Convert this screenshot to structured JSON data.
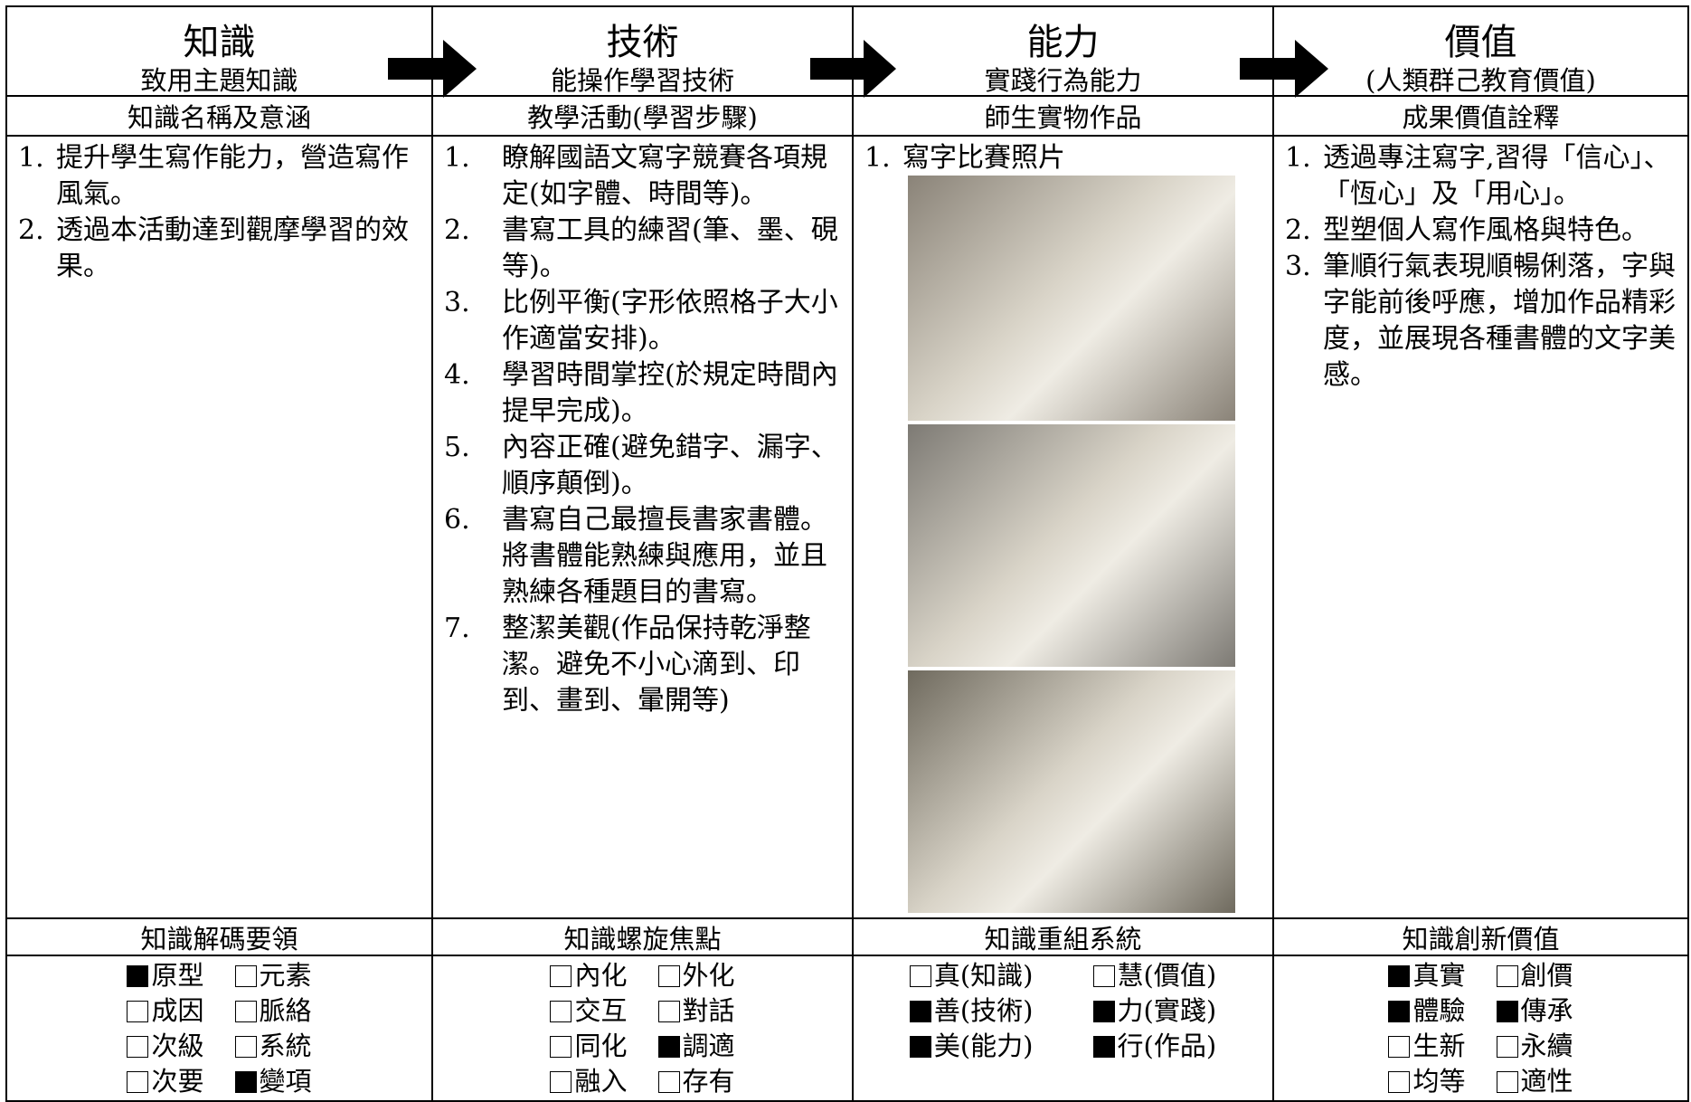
{
  "columns": [
    {
      "title": "知識",
      "subtitle": "致用主題知識",
      "section_heading": "知識名稱及意涵",
      "items": [
        {
          "num": "1.",
          "text": "提升學生寫作能力，營造寫作風氣。"
        },
        {
          "num": "2.",
          "text": "透過本活動達到觀摩學習的效果。"
        }
      ],
      "lower_heading": "知識解碼要領",
      "checkboxes": [
        {
          "label": "原型",
          "checked": true
        },
        {
          "label": "元素",
          "checked": false
        },
        {
          "label": "成因",
          "checked": false
        },
        {
          "label": "脈絡",
          "checked": false
        },
        {
          "label": "次級",
          "checked": false
        },
        {
          "label": "系統",
          "checked": false
        },
        {
          "label": "次要",
          "checked": false
        },
        {
          "label": "變項",
          "checked": true
        }
      ]
    },
    {
      "title": "技術",
      "subtitle": "能操作學習技術",
      "section_heading": "教學活動(學習步驟)",
      "items": [
        {
          "num": "1.",
          "text": "瞭解國語文寫字競賽各項規定(如字體、時間等)。"
        },
        {
          "num": "2.",
          "text": "書寫工具的練習(筆、墨、硯等)。"
        },
        {
          "num": "3.",
          "text": "比例平衡(字形依照格子大小作適當安排)。"
        },
        {
          "num": "4.",
          "text": "學習時間掌控(於規定時間內提早完成)。"
        },
        {
          "num": "5.",
          "text": "內容正確(避免錯字、漏字、順序顛倒)。"
        },
        {
          "num": "6.",
          "text": "書寫自己最擅長書家書體。將書體能熟練與應用，並且熟練各種題目的書寫。"
        },
        {
          "num": "7.",
          "text": "整潔美觀(作品保持乾淨整潔。避免不小心滴到、印到、畫到、暈開等)"
        }
      ],
      "lower_heading": "知識螺旋焦點",
      "checkboxes": [
        {
          "label": "內化",
          "checked": false
        },
        {
          "label": "外化",
          "checked": false
        },
        {
          "label": "交互",
          "checked": false
        },
        {
          "label": "對話",
          "checked": false
        },
        {
          "label": "同化",
          "checked": false
        },
        {
          "label": "調適",
          "checked": true
        },
        {
          "label": "融入",
          "checked": false
        },
        {
          "label": "存有",
          "checked": false
        }
      ]
    },
    {
      "title": "能力",
      "subtitle": "實踐行為能力",
      "section_heading": "師生實物作品",
      "items": [
        {
          "num": "1.",
          "text": "寫字比賽照片"
        }
      ],
      "lower_heading": "知識重組系統",
      "checkboxes": [
        {
          "label": "真(知識)",
          "checked": false
        },
        {
          "label": "慧(價值)",
          "checked": false
        },
        {
          "label": "善(技術)",
          "checked": true
        },
        {
          "label": "力(實踐)",
          "checked": true
        },
        {
          "label": "美(能力)",
          "checked": true
        },
        {
          "label": "行(作品)",
          "checked": true
        }
      ]
    },
    {
      "title": "價值",
      "subtitle": "(人類群己教育價值)",
      "section_heading": "成果價值詮釋",
      "items": [
        {
          "num": "1.",
          "text": "透過專注寫字,習得「信心」、「恆心」及「用心」。"
        },
        {
          "num": "2.",
          "text": "型塑個人寫作風格與特色。"
        },
        {
          "num": "3.",
          "text": "筆順行氣表現順暢俐落，字與字能前後呼應，增加作品精彩度，並展現各種書體的文字美感。"
        }
      ],
      "lower_heading": "知識創新價值",
      "checkboxes": [
        {
          "label": "真實",
          "checked": true
        },
        {
          "label": "創價",
          "checked": false
        },
        {
          "label": "體驗",
          "checked": true
        },
        {
          "label": "傳承",
          "checked": true
        },
        {
          "label": "生新",
          "checked": false
        },
        {
          "label": "永續",
          "checked": false
        },
        {
          "label": "均等",
          "checked": false
        },
        {
          "label": "適性",
          "checked": false
        }
      ]
    }
  ]
}
